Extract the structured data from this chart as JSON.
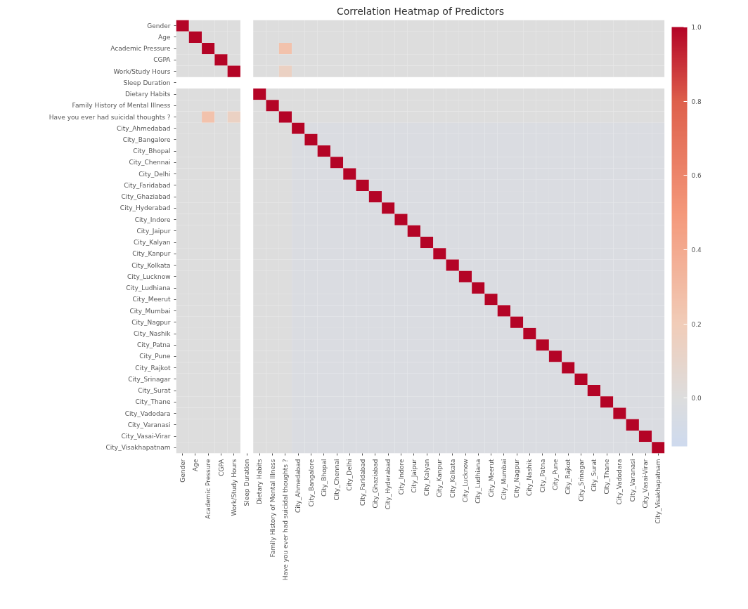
{
  "chart_data": {
    "type": "heatmap",
    "title": "Correlation Heatmap of Predictors",
    "categories": [
      "Gender",
      "Age",
      "Academic Pressure",
      "CGPA",
      "Work/Study Hours",
      "Sleep Duration",
      "Dietary Habits",
      "Family History of Mental Illness",
      "Have you ever had suicidal thoughts ?",
      "City_Ahmedabad",
      "City_Bangalore",
      "City_Bhopal",
      "City_Chennai",
      "City_Delhi",
      "City_Faridabad",
      "City_Ghaziabad",
      "City_Hyderabad",
      "City_Indore",
      "City_Jaipur",
      "City_Kalyan",
      "City_Kanpur",
      "City_Kolkata",
      "City_Lucknow",
      "City_Ludhiana",
      "City_Meerut",
      "City_Mumbai",
      "City_Nagpur",
      "City_Nashik",
      "City_Patna",
      "City_Pune",
      "City_Rajkot",
      "City_Srinagar",
      "City_Surat",
      "City_Thane",
      "City_Vadodara",
      "City_Varanasi",
      "City_Vasai-Virar",
      "City_Visakhapatnam"
    ],
    "y_categories": [
      "Gender",
      "Age",
      "Academic Pressure",
      "CGPA",
      "Work/Study Hours",
      "Sleep Duration",
      "Dietary Habits",
      "Family History of Mental Illness",
      "Have you ever had suicidal thoughts ?",
      "City_Ahmedabad",
      "City_Bangalore",
      "City_Bhopal",
      "City_Chennai",
      "City_Delhi",
      "City_Faridabad",
      "City_Ghaziabad",
      "City_Hyderabad",
      "City_Indore",
      "City_Jaipur",
      "City_Kalyan",
      "City_Kanpur",
      "City_Kolkata",
      "City_Lucknow",
      "City_Ludhiana",
      "City_Meerut",
      "City_Mumbai",
      "City_Nagpur",
      "City_Nashik",
      "City_Patna",
      "City_Pune",
      "City_Rajkot",
      "City_Srinagar",
      "City_Surat",
      "City_Thane",
      "City_Vadodara",
      "City_Varanasi",
      "City_Vasai-Virar",
      "City_Visakhapatnam"
    ],
    "clim": [
      -0.13,
      1.0
    ],
    "cticks": [
      {
        "value": 0.0,
        "label": "0.0"
      },
      {
        "value": 0.2,
        "label": "0.2"
      },
      {
        "value": 0.4,
        "label": "0.4"
      },
      {
        "value": 0.6,
        "label": "0.6"
      },
      {
        "value": 0.8,
        "label": "0.8"
      },
      {
        "value": 1.0,
        "label": "1.0"
      }
    ],
    "cells": [
      [
        1,
        0,
        0,
        0,
        0,
        null,
        0,
        0,
        0,
        0,
        0,
        0,
        0,
        0,
        0,
        0,
        0,
        0,
        0,
        0,
        0,
        0,
        0,
        0,
        0,
        0,
        0,
        0,
        0,
        0,
        0,
        0,
        0,
        0,
        0,
        0,
        0,
        0
      ],
      [
        0,
        1,
        0,
        0,
        0,
        null,
        0,
        0,
        0,
        0,
        0,
        0,
        0,
        0,
        0,
        0,
        0,
        0,
        0,
        0,
        0,
        0,
        0,
        0,
        0,
        0,
        0,
        0,
        0,
        0,
        0,
        0,
        0,
        0,
        0,
        0,
        0,
        0
      ],
      [
        0,
        0,
        1,
        0,
        0,
        null,
        0,
        0,
        0.26,
        0,
        0,
        0,
        0,
        0,
        0,
        0,
        0,
        0,
        0,
        0,
        0,
        0,
        0,
        0,
        0,
        0,
        0,
        0,
        0,
        0,
        0,
        0,
        0,
        0,
        0,
        0,
        0,
        0
      ],
      [
        0,
        0,
        0,
        1,
        0,
        null,
        0,
        0,
        0,
        0,
        0,
        0,
        0,
        0,
        0,
        0,
        0,
        0,
        0,
        0,
        0,
        0,
        0,
        0,
        0,
        0,
        0,
        0,
        0,
        0,
        0,
        0,
        0,
        0,
        0,
        0,
        0,
        0
      ],
      [
        0,
        0,
        0,
        0,
        1,
        null,
        0,
        0,
        0.14,
        0,
        0,
        0,
        0,
        0,
        0,
        0,
        0,
        0,
        0,
        0,
        0,
        0,
        0,
        0,
        0,
        0,
        0,
        0,
        0,
        0,
        0,
        0,
        0,
        0,
        0,
        0,
        0,
        0
      ],
      [
        null,
        null,
        null,
        null,
        null,
        null,
        null,
        null,
        null,
        null,
        null,
        null,
        null,
        null,
        null,
        null,
        null,
        null,
        null,
        null,
        null,
        null,
        null,
        null,
        null,
        null,
        null,
        null,
        null,
        null,
        null,
        null,
        null,
        null,
        null,
        null,
        null,
        null
      ],
      [
        0,
        0,
        0,
        0,
        0,
        null,
        1,
        0,
        0,
        0,
        0,
        0,
        0,
        0,
        0,
        0,
        0,
        0,
        0,
        0,
        0,
        0,
        0,
        0,
        0,
        0,
        0,
        0,
        0,
        0,
        0,
        0,
        0,
        0,
        0,
        0,
        0,
        0
      ],
      [
        0,
        0,
        0,
        0,
        0,
        null,
        0,
        1,
        0,
        0,
        0,
        0,
        0,
        0,
        0,
        0,
        0,
        0,
        0,
        0,
        0,
        0,
        0,
        0,
        0,
        0,
        0,
        0,
        0,
        0,
        0,
        0,
        0,
        0,
        0,
        0,
        0,
        0
      ],
      [
        0,
        0,
        0.26,
        0,
        0.14,
        null,
        0,
        0,
        1,
        0,
        0,
        0,
        0,
        0,
        0,
        0,
        0,
        0,
        0,
        0,
        0,
        0,
        0,
        0,
        0,
        0,
        0,
        0,
        0,
        0,
        0,
        0,
        0,
        0,
        0,
        0,
        0,
        0
      ],
      [
        0,
        0,
        0,
        0,
        0,
        null,
        0,
        0,
        0,
        1,
        -0.03,
        -0.03,
        -0.03,
        -0.03,
        -0.03,
        -0.03,
        -0.03,
        -0.03,
        -0.03,
        -0.03,
        -0.03,
        -0.03,
        -0.03,
        -0.03,
        -0.03,
        -0.03,
        -0.03,
        -0.03,
        -0.03,
        -0.03,
        -0.03,
        -0.03,
        -0.03,
        -0.03,
        -0.03,
        -0.03,
        -0.03,
        -0.03
      ],
      [
        0,
        0,
        0,
        0,
        0,
        null,
        0,
        0,
        0,
        -0.03,
        1,
        -0.03,
        -0.03,
        -0.03,
        -0.03,
        -0.03,
        -0.03,
        -0.03,
        -0.03,
        -0.03,
        -0.03,
        -0.03,
        -0.03,
        -0.03,
        -0.03,
        -0.03,
        -0.03,
        -0.03,
        -0.03,
        -0.03,
        -0.03,
        -0.03,
        -0.03,
        -0.03,
        -0.03,
        -0.03,
        -0.03,
        -0.03
      ],
      [
        0,
        0,
        0,
        0,
        0,
        null,
        0,
        0,
        0,
        -0.03,
        -0.03,
        1,
        -0.03,
        -0.03,
        -0.03,
        -0.03,
        -0.03,
        -0.03,
        -0.03,
        -0.03,
        -0.03,
        -0.03,
        -0.03,
        -0.03,
        -0.03,
        -0.03,
        -0.03,
        -0.03,
        -0.03,
        -0.03,
        -0.03,
        -0.03,
        -0.03,
        -0.03,
        -0.03,
        -0.03,
        -0.03,
        -0.03
      ],
      [
        0,
        0,
        0,
        0,
        0,
        null,
        0,
        0,
        0,
        -0.03,
        -0.03,
        -0.03,
        1,
        -0.03,
        -0.03,
        -0.03,
        -0.03,
        -0.03,
        -0.03,
        -0.03,
        -0.03,
        -0.03,
        -0.03,
        -0.03,
        -0.03,
        -0.03,
        -0.03,
        -0.03,
        -0.03,
        -0.03,
        -0.03,
        -0.03,
        -0.03,
        -0.03,
        -0.03,
        -0.03,
        -0.03,
        -0.03
      ],
      [
        0,
        0,
        0,
        0,
        0,
        null,
        0,
        0,
        0,
        -0.03,
        -0.03,
        -0.03,
        -0.03,
        1,
        -0.03,
        -0.03,
        -0.03,
        -0.03,
        -0.03,
        -0.03,
        -0.03,
        -0.03,
        -0.03,
        -0.03,
        -0.03,
        -0.03,
        -0.03,
        -0.03,
        -0.03,
        -0.03,
        -0.03,
        -0.03,
        -0.03,
        -0.03,
        -0.03,
        -0.03,
        -0.03,
        -0.03
      ],
      [
        0,
        0,
        0,
        0,
        0,
        null,
        0,
        0,
        0,
        -0.03,
        -0.03,
        -0.03,
        -0.03,
        -0.03,
        1,
        -0.03,
        -0.03,
        -0.03,
        -0.03,
        -0.03,
        -0.03,
        -0.03,
        -0.03,
        -0.03,
        -0.03,
        -0.03,
        -0.03,
        -0.03,
        -0.03,
        -0.03,
        -0.03,
        -0.03,
        -0.03,
        -0.03,
        -0.03,
        -0.03,
        -0.03,
        -0.03
      ],
      [
        0,
        0,
        0,
        0,
        0,
        null,
        0,
        0,
        0,
        -0.03,
        -0.03,
        -0.03,
        -0.03,
        -0.03,
        -0.03,
        1,
        -0.03,
        -0.03,
        -0.03,
        -0.03,
        -0.03,
        -0.03,
        -0.03,
        -0.03,
        -0.03,
        -0.03,
        -0.03,
        -0.03,
        -0.03,
        -0.03,
        -0.03,
        -0.03,
        -0.03,
        -0.03,
        -0.03,
        -0.03,
        -0.03,
        -0.03
      ],
      [
        0,
        0,
        0,
        0,
        0,
        null,
        0,
        0,
        0,
        -0.03,
        -0.03,
        -0.03,
        -0.03,
        -0.03,
        -0.03,
        -0.03,
        1,
        -0.03,
        -0.03,
        -0.03,
        -0.03,
        -0.03,
        -0.03,
        -0.03,
        -0.03,
        -0.03,
        -0.03,
        -0.03,
        -0.03,
        -0.03,
        -0.03,
        -0.03,
        -0.03,
        -0.03,
        -0.03,
        -0.03,
        -0.03,
        -0.03
      ],
      [
        0,
        0,
        0,
        0,
        0,
        null,
        0,
        0,
        0,
        -0.03,
        -0.03,
        -0.03,
        -0.03,
        -0.03,
        -0.03,
        -0.03,
        -0.03,
        1,
        -0.03,
        -0.03,
        -0.03,
        -0.03,
        -0.03,
        -0.03,
        -0.03,
        -0.03,
        -0.03,
        -0.03,
        -0.03,
        -0.03,
        -0.03,
        -0.03,
        -0.03,
        -0.03,
        -0.03,
        -0.03,
        -0.03,
        -0.03
      ],
      [
        0,
        0,
        0,
        0,
        0,
        null,
        0,
        0,
        0,
        -0.03,
        -0.03,
        -0.03,
        -0.03,
        -0.03,
        -0.03,
        -0.03,
        -0.03,
        -0.03,
        1,
        -0.03,
        -0.03,
        -0.03,
        -0.03,
        -0.03,
        -0.03,
        -0.03,
        -0.03,
        -0.03,
        -0.03,
        -0.03,
        -0.03,
        -0.03,
        -0.03,
        -0.03,
        -0.03,
        -0.03,
        -0.03,
        -0.03
      ],
      [
        0,
        0,
        0,
        0,
        0,
        null,
        0,
        0,
        0,
        -0.03,
        -0.03,
        -0.03,
        -0.03,
        -0.03,
        -0.03,
        -0.03,
        -0.03,
        -0.03,
        -0.03,
        1,
        -0.03,
        -0.03,
        -0.03,
        -0.03,
        -0.03,
        -0.03,
        -0.03,
        -0.03,
        -0.03,
        -0.03,
        -0.03,
        -0.03,
        -0.03,
        -0.03,
        -0.03,
        -0.03,
        -0.03,
        -0.03
      ],
      [
        0,
        0,
        0,
        0,
        0,
        null,
        0,
        0,
        0,
        -0.03,
        -0.03,
        -0.03,
        -0.03,
        -0.03,
        -0.03,
        -0.03,
        -0.03,
        -0.03,
        -0.03,
        -0.03,
        1,
        -0.03,
        -0.03,
        -0.03,
        -0.03,
        -0.03,
        -0.03,
        -0.03,
        -0.03,
        -0.03,
        -0.03,
        -0.03,
        -0.03,
        -0.03,
        -0.03,
        -0.03,
        -0.03,
        -0.03
      ],
      [
        0,
        0,
        0,
        0,
        0,
        null,
        0,
        0,
        0,
        -0.03,
        -0.03,
        -0.03,
        -0.03,
        -0.03,
        -0.03,
        -0.03,
        -0.03,
        -0.03,
        -0.03,
        -0.03,
        -0.03,
        1,
        -0.03,
        -0.03,
        -0.03,
        -0.03,
        -0.03,
        -0.03,
        -0.03,
        -0.03,
        -0.03,
        -0.03,
        -0.03,
        -0.03,
        -0.03,
        -0.03,
        -0.03,
        -0.03
      ],
      [
        0,
        0,
        0,
        0,
        0,
        null,
        0,
        0,
        0,
        -0.03,
        -0.03,
        -0.03,
        -0.03,
        -0.03,
        -0.03,
        -0.03,
        -0.03,
        -0.03,
        -0.03,
        -0.03,
        -0.03,
        -0.03,
        1,
        -0.03,
        -0.03,
        -0.03,
        -0.03,
        -0.03,
        -0.03,
        -0.03,
        -0.03,
        -0.03,
        -0.03,
        -0.03,
        -0.03,
        -0.03,
        -0.03,
        -0.03
      ],
      [
        0,
        0,
        0,
        0,
        0,
        null,
        0,
        0,
        0,
        -0.03,
        -0.03,
        -0.03,
        -0.03,
        -0.03,
        -0.03,
        -0.03,
        -0.03,
        -0.03,
        -0.03,
        -0.03,
        -0.03,
        -0.03,
        -0.03,
        1,
        -0.03,
        -0.03,
        -0.03,
        -0.03,
        -0.03,
        -0.03,
        -0.03,
        -0.03,
        -0.03,
        -0.03,
        -0.03,
        -0.03,
        -0.03,
        -0.03
      ],
      [
        0,
        0,
        0,
        0,
        0,
        null,
        0,
        0,
        0,
        -0.03,
        -0.03,
        -0.03,
        -0.03,
        -0.03,
        -0.03,
        -0.03,
        -0.03,
        -0.03,
        -0.03,
        -0.03,
        -0.03,
        -0.03,
        -0.03,
        -0.03,
        1,
        -0.03,
        -0.03,
        -0.03,
        -0.03,
        -0.03,
        -0.03,
        -0.03,
        -0.03,
        -0.03,
        -0.03,
        -0.03,
        -0.03,
        -0.03
      ],
      [
        0,
        0,
        0,
        0,
        0,
        null,
        0,
        0,
        0,
        -0.03,
        -0.03,
        -0.03,
        -0.03,
        -0.03,
        -0.03,
        -0.03,
        -0.03,
        -0.03,
        -0.03,
        -0.03,
        -0.03,
        -0.03,
        -0.03,
        -0.03,
        -0.03,
        1,
        -0.03,
        -0.03,
        -0.03,
        -0.03,
        -0.03,
        -0.03,
        -0.03,
        -0.03,
        -0.03,
        -0.03,
        -0.03,
        -0.03
      ],
      [
        0,
        0,
        0,
        0,
        0,
        null,
        0,
        0,
        0,
        -0.03,
        -0.03,
        -0.03,
        -0.03,
        -0.03,
        -0.03,
        -0.03,
        -0.03,
        -0.03,
        -0.03,
        -0.03,
        -0.03,
        -0.03,
        -0.03,
        -0.03,
        -0.03,
        -0.03,
        1,
        -0.03,
        -0.03,
        -0.03,
        -0.03,
        -0.03,
        -0.03,
        -0.03,
        -0.03,
        -0.03,
        -0.03,
        -0.03
      ],
      [
        0,
        0,
        0,
        0,
        0,
        null,
        0,
        0,
        0,
        -0.03,
        -0.03,
        -0.03,
        -0.03,
        -0.03,
        -0.03,
        -0.03,
        -0.03,
        -0.03,
        -0.03,
        -0.03,
        -0.03,
        -0.03,
        -0.03,
        -0.03,
        -0.03,
        -0.03,
        -0.03,
        1,
        -0.03,
        -0.03,
        -0.03,
        -0.03,
        -0.03,
        -0.03,
        -0.03,
        -0.03,
        -0.03,
        -0.03
      ],
      [
        0,
        0,
        0,
        0,
        0,
        null,
        0,
        0,
        0,
        -0.03,
        -0.03,
        -0.03,
        -0.03,
        -0.03,
        -0.03,
        -0.03,
        -0.03,
        -0.03,
        -0.03,
        -0.03,
        -0.03,
        -0.03,
        -0.03,
        -0.03,
        -0.03,
        -0.03,
        -0.03,
        -0.03,
        1,
        -0.03,
        -0.03,
        -0.03,
        -0.03,
        -0.03,
        -0.03,
        -0.03,
        -0.03,
        -0.03
      ],
      [
        0,
        0,
        0,
        0,
        0,
        null,
        0,
        0,
        0,
        -0.03,
        -0.03,
        -0.03,
        -0.03,
        -0.03,
        -0.03,
        -0.03,
        -0.03,
        -0.03,
        -0.03,
        -0.03,
        -0.03,
        -0.03,
        -0.03,
        -0.03,
        -0.03,
        -0.03,
        -0.03,
        -0.03,
        -0.03,
        1,
        -0.03,
        -0.03,
        -0.03,
        -0.03,
        -0.03,
        -0.03,
        -0.03,
        -0.03
      ],
      [
        0,
        0,
        0,
        0,
        0,
        null,
        0,
        0,
        0,
        -0.03,
        -0.03,
        -0.03,
        -0.03,
        -0.03,
        -0.03,
        -0.03,
        -0.03,
        -0.03,
        -0.03,
        -0.03,
        -0.03,
        -0.03,
        -0.03,
        -0.03,
        -0.03,
        -0.03,
        -0.03,
        -0.03,
        -0.03,
        -0.03,
        1,
        -0.03,
        -0.03,
        -0.03,
        -0.03,
        -0.03,
        -0.03,
        -0.03
      ],
      [
        0,
        0,
        0,
        0,
        0,
        null,
        0,
        0,
        0,
        -0.03,
        -0.03,
        -0.03,
        -0.03,
        -0.03,
        -0.03,
        -0.03,
        -0.03,
        -0.03,
        -0.03,
        -0.03,
        -0.03,
        -0.03,
        -0.03,
        -0.03,
        -0.03,
        -0.03,
        -0.03,
        -0.03,
        -0.03,
        -0.03,
        -0.03,
        1,
        -0.03,
        -0.03,
        -0.03,
        -0.03,
        -0.03,
        -0.03
      ],
      [
        0,
        0,
        0,
        0,
        0,
        null,
        0,
        0,
        0,
        -0.03,
        -0.03,
        -0.03,
        -0.03,
        -0.03,
        -0.03,
        -0.03,
        -0.03,
        -0.03,
        -0.03,
        -0.03,
        -0.03,
        -0.03,
        -0.03,
        -0.03,
        -0.03,
        -0.03,
        -0.03,
        -0.03,
        -0.03,
        -0.03,
        -0.03,
        -0.03,
        1,
        -0.03,
        -0.03,
        -0.03,
        -0.03,
        -0.03
      ],
      [
        0,
        0,
        0,
        0,
        0,
        null,
        0,
        0,
        0,
        -0.03,
        -0.03,
        -0.03,
        -0.03,
        -0.03,
        -0.03,
        -0.03,
        -0.03,
        -0.03,
        -0.03,
        -0.03,
        -0.03,
        -0.03,
        -0.03,
        -0.03,
        -0.03,
        -0.03,
        -0.03,
        -0.03,
        -0.03,
        -0.03,
        -0.03,
        -0.03,
        -0.03,
        1,
        -0.03,
        -0.03,
        -0.03,
        -0.03
      ],
      [
        0,
        0,
        0,
        0,
        0,
        null,
        0,
        0,
        0,
        -0.03,
        -0.03,
        -0.03,
        -0.03,
        -0.03,
        -0.03,
        -0.03,
        -0.03,
        -0.03,
        -0.03,
        -0.03,
        -0.03,
        -0.03,
        -0.03,
        -0.03,
        -0.03,
        -0.03,
        -0.03,
        -0.03,
        -0.03,
        -0.03,
        -0.03,
        -0.03,
        -0.03,
        -0.03,
        1,
        -0.03,
        -0.03,
        -0.03
      ],
      [
        0,
        0,
        0,
        0,
        0,
        null,
        0,
        0,
        0,
        -0.03,
        -0.03,
        -0.03,
        -0.03,
        -0.03,
        -0.03,
        -0.03,
        -0.03,
        -0.03,
        -0.03,
        -0.03,
        -0.03,
        -0.03,
        -0.03,
        -0.03,
        -0.03,
        -0.03,
        -0.03,
        -0.03,
        -0.03,
        -0.03,
        -0.03,
        -0.03,
        -0.03,
        -0.03,
        -0.03,
        1,
        -0.03,
        -0.03
      ],
      [
        0,
        0,
        0,
        0,
        0,
        null,
        0,
        0,
        0,
        -0.03,
        -0.03,
        -0.03,
        -0.03,
        -0.03,
        -0.03,
        -0.03,
        -0.03,
        -0.03,
        -0.03,
        -0.03,
        -0.03,
        -0.03,
        -0.03,
        -0.03,
        -0.03,
        -0.03,
        -0.03,
        -0.03,
        -0.03,
        -0.03,
        -0.03,
        -0.03,
        -0.03,
        -0.03,
        -0.03,
        -0.03,
        1,
        -0.03
      ],
      [
        0,
        0,
        0,
        0,
        0,
        null,
        0,
        0,
        0,
        -0.03,
        -0.03,
        -0.03,
        -0.03,
        -0.03,
        -0.03,
        -0.03,
        -0.03,
        -0.03,
        -0.03,
        -0.03,
        -0.03,
        -0.03,
        -0.03,
        -0.03,
        -0.03,
        -0.03,
        -0.03,
        -0.03,
        -0.03,
        -0.03,
        -0.03,
        -0.03,
        -0.03,
        -0.03,
        -0.03,
        -0.03,
        -0.03,
        1
      ]
    ]
  }
}
